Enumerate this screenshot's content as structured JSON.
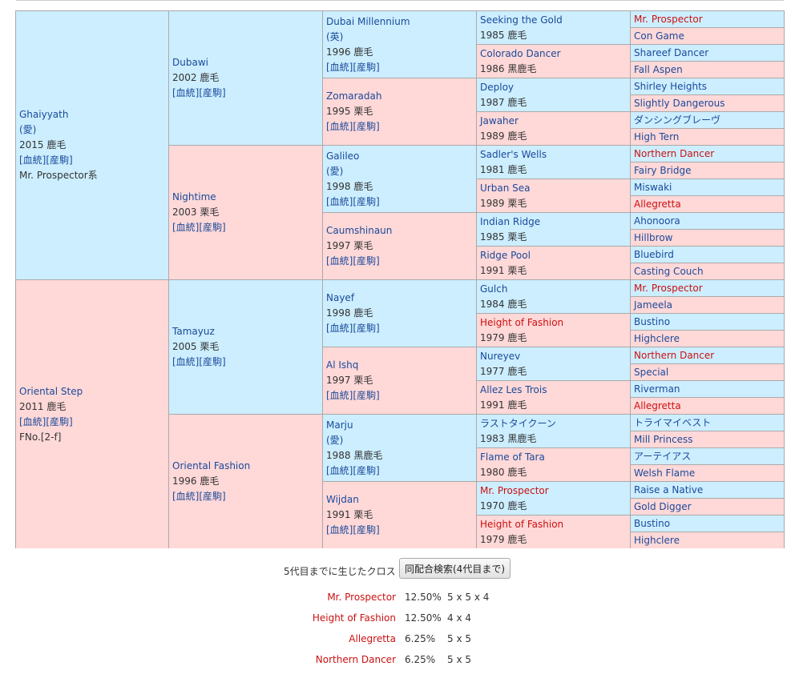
{
  "pedigree": {
    "g1": [
      {
        "name": "Ghaiyyath",
        "country": "(愛)",
        "year": "2015 鹿毛",
        "links": "[血統][産駒]",
        "lineage": "Mr. Prospector系"
      },
      {
        "name": "Oriental Step",
        "year": "2011 鹿毛",
        "links": "[血統][産駒]",
        "family": "FNo.[2-f]"
      }
    ],
    "g2": [
      {
        "name": "Dubawi",
        "year": "2002 鹿毛",
        "links": "[血統][産駒]"
      },
      {
        "name": "Nightime",
        "year": "2003 栗毛",
        "links": "[血統][産駒]"
      },
      {
        "name": "Tamayuz",
        "year": "2005 栗毛",
        "links": "[血統][産駒]"
      },
      {
        "name": "Oriental Fashion",
        "year": "1996 鹿毛",
        "links": "[血統][産駒]"
      }
    ],
    "g3": [
      {
        "name": "Dubai Millennium",
        "country": "(英)",
        "year": "1996 鹿毛",
        "links": "[血統][産駒]"
      },
      {
        "name": "Zomaradah",
        "year": "1995 栗毛",
        "links": "[血統][産駒]"
      },
      {
        "name": "Galileo",
        "country": "(愛)",
        "year": "1998 鹿毛",
        "links": "[血統][産駒]"
      },
      {
        "name": "Caumshinaun",
        "year": "1997 栗毛",
        "links": "[血統][産駒]"
      },
      {
        "name": "Nayef",
        "year": "1998 鹿毛",
        "links": "[血統][産駒]"
      },
      {
        "name": "Al Ishq",
        "year": "1997 栗毛",
        "links": "[血統][産駒]"
      },
      {
        "name": "Marju",
        "country": "(愛)",
        "year": "1988 黒鹿毛",
        "links": "[血統][産駒]"
      },
      {
        "name": "Wijdan",
        "year": "1991 栗毛",
        "links": "[血統][産駒]"
      }
    ],
    "g4": [
      {
        "name": "Seeking the Gold",
        "year": "1985 鹿毛",
        "red": false
      },
      {
        "name": "Colorado Dancer",
        "year": "1986 黒鹿毛",
        "red": false
      },
      {
        "name": "Deploy",
        "year": "1987 鹿毛",
        "red": false
      },
      {
        "name": "Jawaher",
        "year": "1989 鹿毛",
        "red": false
      },
      {
        "name": "Sadler's Wells",
        "year": "1981 鹿毛",
        "red": false
      },
      {
        "name": "Urban Sea",
        "year": "1989 栗毛",
        "red": false
      },
      {
        "name": "Indian Ridge",
        "year": "1985 栗毛",
        "red": false
      },
      {
        "name": "Ridge Pool",
        "year": "1991 栗毛",
        "red": false
      },
      {
        "name": "Gulch",
        "year": "1984 鹿毛",
        "red": false
      },
      {
        "name": "Height of Fashion",
        "year": "1979 鹿毛",
        "red": true
      },
      {
        "name": "Nureyev",
        "year": "1977 鹿毛",
        "red": false
      },
      {
        "name": "Allez Les Trois",
        "year": "1991 鹿毛",
        "red": false
      },
      {
        "name": "ラストタイクーン",
        "year": "1983 黒鹿毛",
        "red": false
      },
      {
        "name": "Flame of Tara",
        "year": "1980 鹿毛",
        "red": false
      },
      {
        "name": "Mr. Prospector",
        "year": "1970 鹿毛",
        "red": true
      },
      {
        "name": "Height of Fashion",
        "year": "1979 鹿毛",
        "red": true
      }
    ],
    "g5": [
      {
        "name": "Mr. Prospector",
        "red": true
      },
      {
        "name": "Con Game",
        "red": false
      },
      {
        "name": "Shareef Dancer",
        "red": false
      },
      {
        "name": "Fall Aspen",
        "red": false
      },
      {
        "name": "Shirley Heights",
        "red": false
      },
      {
        "name": "Slightly Dangerous",
        "red": false
      },
      {
        "name": "ダンシングブレーヴ",
        "red": false
      },
      {
        "name": "High Tern",
        "red": false
      },
      {
        "name": "Northern Dancer",
        "red": true
      },
      {
        "name": "Fairy Bridge",
        "red": false
      },
      {
        "name": "Miswaki",
        "red": false
      },
      {
        "name": "Allegretta",
        "red": true
      },
      {
        "name": "Ahonoora",
        "red": false
      },
      {
        "name": "Hillbrow",
        "red": false
      },
      {
        "name": "Bluebird",
        "red": false
      },
      {
        "name": "Casting Couch",
        "red": false
      },
      {
        "name": "Mr. Prospector",
        "red": true
      },
      {
        "name": "Jameela",
        "red": false
      },
      {
        "name": "Bustino",
        "red": false
      },
      {
        "name": "Highclere",
        "red": false
      },
      {
        "name": "Northern Dancer",
        "red": true
      },
      {
        "name": "Special",
        "red": false
      },
      {
        "name": "Riverman",
        "red": false
      },
      {
        "name": "Allegretta",
        "red": true
      },
      {
        "name": "トライマイベスト",
        "red": false
      },
      {
        "name": "Mill Princess",
        "red": false
      },
      {
        "name": "アーテイアス",
        "red": false
      },
      {
        "name": "Welsh Flame",
        "red": false
      },
      {
        "name": "Raise a Native",
        "red": false
      },
      {
        "name": "Gold Digger",
        "red": false
      },
      {
        "name": "Bustino",
        "red": false
      },
      {
        "name": "Highclere",
        "red": false
      }
    ]
  },
  "crosses": {
    "title": "5代目までに生じたクロス",
    "search_button": "同配合検索(4代目まで)",
    "rows": [
      {
        "name": "Mr. Prospector",
        "pct": "12.50%",
        "gen": "5 x 5 x 4"
      },
      {
        "name": "Height of Fashion",
        "pct": "12.50%",
        "gen": "4 x 4"
      },
      {
        "name": "Allegretta",
        "pct": "6.25%",
        "gen": "5 x 5"
      },
      {
        "name": "Northern Dancer",
        "pct": "6.25%",
        "gen": "5 x 5"
      }
    ]
  },
  "colors": {
    "sire_bg": "#cceeff",
    "dam_bg": "#ffd8d8",
    "link": "#1a4a9a",
    "highlight": "#cc1111"
  }
}
